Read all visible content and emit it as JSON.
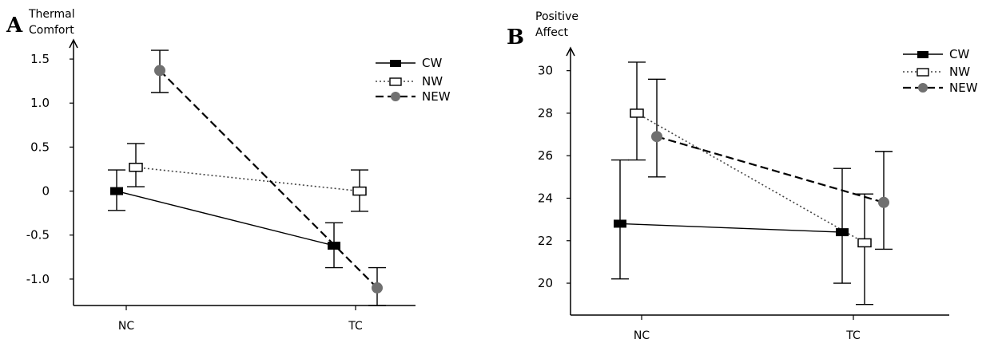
{
  "chart_data": [
    {
      "panel": "A",
      "type": "line",
      "ylabel_lines": [
        "Thermal",
        "Comfort"
      ],
      "categories": [
        "NC",
        "TC"
      ],
      "ylim": [
        -1.3,
        1.7
      ],
      "yticks": [
        {
          "value": 1.5,
          "label": "1.5"
        },
        {
          "value": 1.0,
          "label": "1.0"
        },
        {
          "value": 0.5,
          "label": "0.5"
        },
        {
          "value": 0,
          "label": "0"
        },
        {
          "value": -0.5,
          "label": "-0.5"
        },
        {
          "value": -1.0,
          "label": "-1.0"
        }
      ],
      "legend_position": "top-right",
      "series": [
        {
          "name": "CW",
          "marker": "filled-square",
          "line": "solid",
          "values": [
            0.0,
            -0.62
          ],
          "err_low": [
            -0.22,
            -0.87
          ],
          "err_high": [
            0.24,
            -0.36
          ]
        },
        {
          "name": "NW",
          "marker": "open-square",
          "line": "dotted",
          "values": [
            0.27,
            0.0
          ],
          "err_low": [
            0.05,
            -0.23
          ],
          "err_high": [
            0.54,
            0.24
          ]
        },
        {
          "name": "NEW",
          "marker": "gray-circle",
          "line": "dashed",
          "values": [
            1.37,
            -1.1
          ],
          "err_low": [
            1.12,
            -1.3
          ],
          "err_high": [
            1.6,
            -0.87
          ]
        }
      ]
    },
    {
      "panel": "B",
      "type": "line",
      "ylabel_lines": [
        "Positive",
        "Affect"
      ],
      "categories": [
        "NC",
        "TC"
      ],
      "ylim": [
        18.5,
        31
      ],
      "yticks": [
        {
          "value": 30,
          "label": "30"
        },
        {
          "value": 28,
          "label": "28"
        },
        {
          "value": 26,
          "label": "26"
        },
        {
          "value": 24,
          "label": "24"
        },
        {
          "value": 22,
          "label": "22"
        },
        {
          "value": 20,
          "label": "20"
        }
      ],
      "legend_position": "top-right",
      "series": [
        {
          "name": "CW",
          "marker": "filled-square",
          "line": "solid",
          "values": [
            22.8,
            22.4
          ],
          "err_low": [
            20.2,
            20.0
          ],
          "err_high": [
            25.8,
            25.4
          ]
        },
        {
          "name": "NW",
          "marker": "open-square",
          "line": "dotted",
          "values": [
            28.0,
            21.9
          ],
          "err_low": [
            25.8,
            19.0
          ],
          "err_high": [
            30.4,
            24.2
          ]
        },
        {
          "name": "NEW",
          "marker": "gray-circle",
          "line": "dashed",
          "values": [
            26.9,
            23.8
          ],
          "err_low": [
            25.0,
            21.6
          ],
          "err_high": [
            29.6,
            26.2
          ]
        }
      ]
    }
  ]
}
